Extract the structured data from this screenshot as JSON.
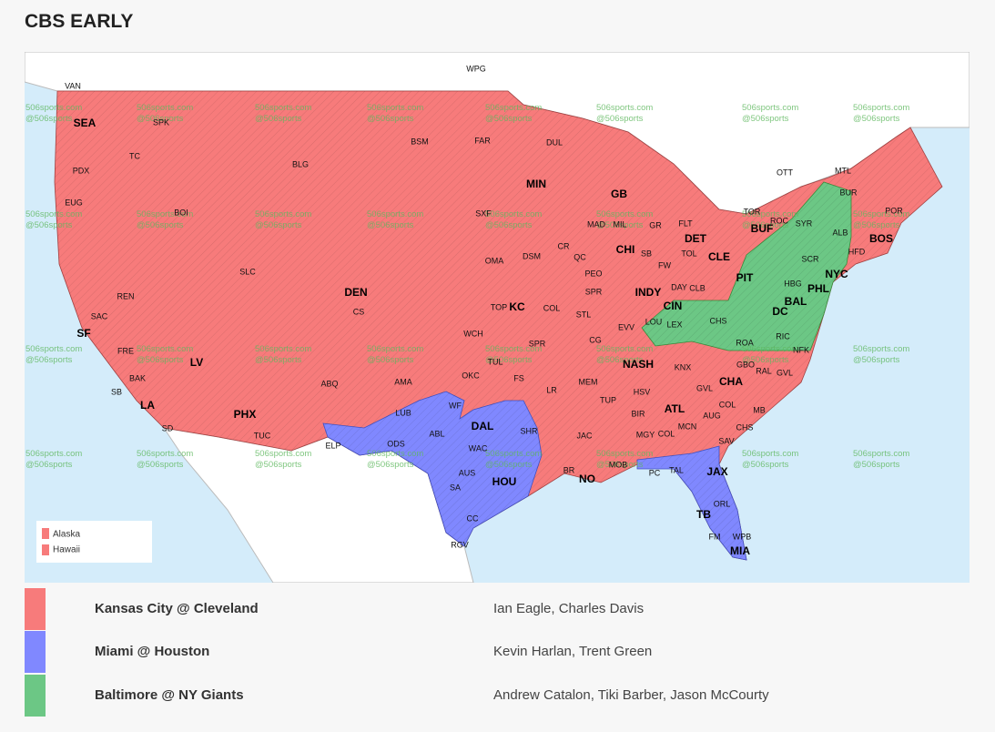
{
  "title": "CBS EARLY",
  "map": {
    "watermark": [
      "506sports.com",
      "@506sports"
    ],
    "inset_legend": [
      "Alaska",
      "Hawaii"
    ],
    "markets": [
      "SEA",
      "SF",
      "LA",
      "PHX",
      "DEN",
      "LV",
      "MIN",
      "GB",
      "CHI",
      "KC",
      "DAL",
      "HOU",
      "NO",
      "NASH",
      "ATL",
      "INDY",
      "DET",
      "CLE",
      "CIN",
      "PIT",
      "BUF",
      "NYC",
      "PHL",
      "BAL",
      "DC",
      "BOS",
      "JAX",
      "TB",
      "MIA",
      "CHA"
    ],
    "cities": [
      "VAN",
      "WPG",
      "SPK",
      "TC",
      "PDX",
      "EUG",
      "BOI",
      "BLG",
      "BSM",
      "FAR",
      "DUL",
      "SXF",
      "OMA",
      "DSM",
      "CR",
      "QC",
      "MAD",
      "MIL",
      "GR",
      "FLT",
      "TOL",
      "SB",
      "FW",
      "PEO",
      "SPR",
      "STL",
      "COL",
      "TOP",
      "WCH",
      "SPR",
      "OKC",
      "TUL",
      "FS",
      "LR",
      "MEM",
      "CG",
      "EVV",
      "LOU",
      "LEX",
      "DAY",
      "CLB",
      "CHS",
      "ROA",
      "RIC",
      "NFK",
      "GBO",
      "RAL",
      "GVL",
      "KNX",
      "HSV",
      "TUP",
      "BIR",
      "MGY",
      "COL",
      "MCN",
      "GVL",
      "COL",
      "AUG",
      "CHS",
      "MB",
      "SAV",
      "JAC",
      "MOB",
      "PC",
      "TAL",
      "ORL",
      "FM",
      "WPB",
      "SLC",
      "REN",
      "SAC",
      "FRE",
      "BAK",
      "SB",
      "SD",
      "TUC",
      "ABQ",
      "AMA",
      "LUB",
      "ELP",
      "ODS",
      "ABL",
      "WF",
      "WAC",
      "AUS",
      "SA",
      "CC",
      "RGV",
      "SHR",
      "BR",
      "TOR",
      "ROC",
      "SYR",
      "ALB",
      "HFD",
      "BUR",
      "POR",
      "OTT",
      "MTL",
      "SCR",
      "HBG",
      "CS"
    ]
  },
  "games": [
    {
      "matchup": "Kansas City @ Cleveland",
      "broadcasters": "Ian Eagle, Charles Davis",
      "color": "#f77b7b"
    },
    {
      "matchup": "Miami @ Houston",
      "broadcasters": "Kevin Harlan, Trent Green",
      "color": "#8088ff"
    },
    {
      "matchup": "Baltimore @ NY Giants",
      "broadcasters": "Andrew Catalon, Tiki Barber, Jason McCourty",
      "color": "#6cc785"
    }
  ]
}
